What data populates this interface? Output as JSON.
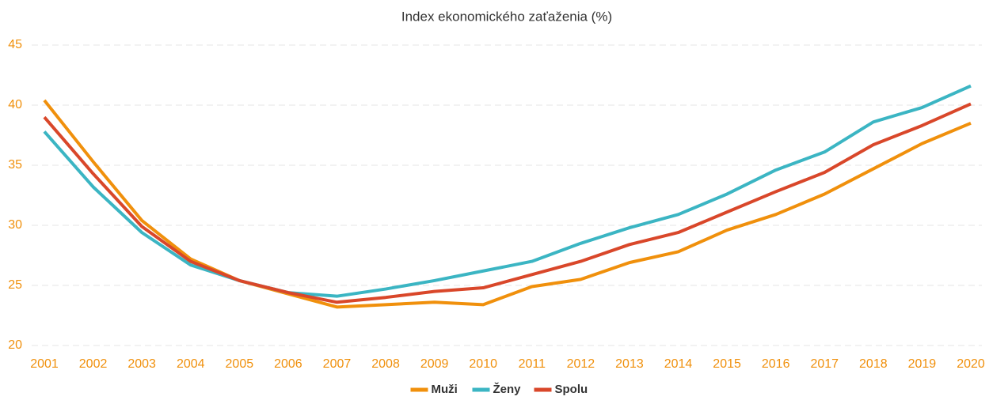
{
  "chart_data": {
    "type": "line",
    "title": "Index ekonomického zaťaženia (%)",
    "categories": [
      "2001",
      "2002",
      "2003",
      "2004",
      "2005",
      "2006",
      "2007",
      "2008",
      "2009",
      "2010",
      "2011",
      "2012",
      "2013",
      "2014",
      "2015",
      "2016",
      "2017",
      "2018",
      "2019",
      "2020"
    ],
    "series": [
      {
        "name": "Muži",
        "color": "#f0900c",
        "values": [
          40.4,
          35.3,
          30.4,
          27.2,
          25.4,
          24.3,
          23.2,
          23.4,
          23.6,
          23.4,
          24.9,
          25.5,
          26.9,
          27.8,
          29.6,
          30.9,
          32.6,
          34.7,
          36.8,
          38.5
        ]
      },
      {
        "name": "Ženy",
        "color": "#3bb5c3",
        "values": [
          37.8,
          33.2,
          29.4,
          26.7,
          25.4,
          24.4,
          24.1,
          24.7,
          25.4,
          26.2,
          27.0,
          28.5,
          29.8,
          30.9,
          32.6,
          34.6,
          36.1,
          38.6,
          39.8,
          41.6
        ]
      },
      {
        "name": "Spolu",
        "color": "#d9472a",
        "values": [
          39.0,
          34.3,
          29.9,
          27.0,
          25.4,
          24.4,
          23.6,
          24.0,
          24.5,
          24.8,
          25.9,
          27.0,
          28.4,
          29.4,
          31.1,
          32.8,
          34.4,
          36.7,
          38.3,
          40.1
        ]
      }
    ],
    "ylim": [
      20,
      45
    ],
    "yticks": [
      20,
      25,
      30,
      35,
      40,
      45
    ],
    "grid": true,
    "legend": "bottom",
    "tick_color": "#f0900c"
  }
}
